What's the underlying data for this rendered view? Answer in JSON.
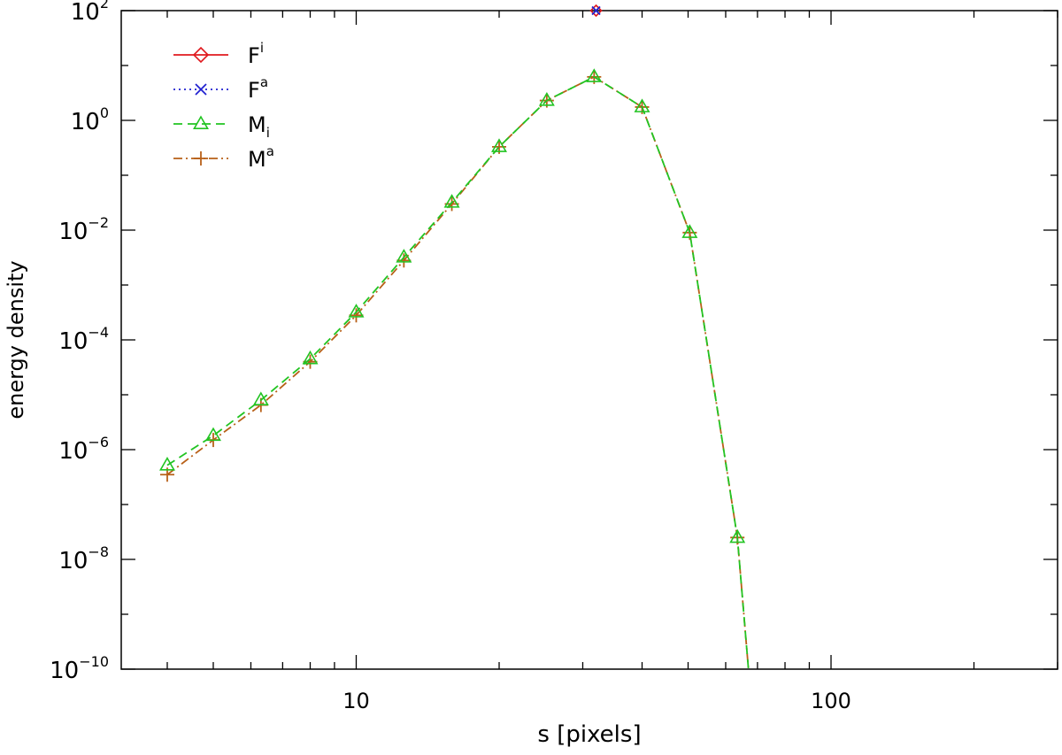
{
  "chart_data": {
    "type": "line",
    "xlabel": "s [pixels]",
    "ylabel": "energy density",
    "x_scale": "log",
    "y_scale": "log",
    "xlim": [
      3.2,
      300
    ],
    "ylim": [
      1e-10,
      100
    ],
    "x_ticks": [
      {
        "value": 10,
        "label": "10"
      },
      {
        "value": 100,
        "label": "100"
      }
    ],
    "y_ticks": [
      {
        "value": 1e-10,
        "base": "10",
        "exp": "−10"
      },
      {
        "value": 1e-08,
        "base": "10",
        "exp": "−8"
      },
      {
        "value": 1e-06,
        "base": "10",
        "exp": "−6"
      },
      {
        "value": 0.0001,
        "base": "10",
        "exp": "−4"
      },
      {
        "value": 0.01,
        "base": "10",
        "exp": "−2"
      },
      {
        "value": 1,
        "base": "10",
        "exp": "0"
      },
      {
        "value": 100,
        "base": "10",
        "exp": "2"
      }
    ],
    "grid": false,
    "legend_position": "top-left",
    "series": [
      {
        "base": "F",
        "sub": "",
        "sup": "i",
        "color": "#e0191e",
        "dash": "solid",
        "marker": "diamond",
        "points": [
          [
            32,
            100
          ]
        ]
      },
      {
        "base": "F",
        "sub": "",
        "sup": "a",
        "color": "#2020d0",
        "dash": "dotted",
        "marker": "x",
        "points": [
          [
            32,
            100
          ]
        ]
      },
      {
        "base": "M",
        "sub": "i",
        "sup": "",
        "color": "#22c422",
        "dash": "dashed",
        "marker": "triangle",
        "points": [
          [
            4,
            5.2e-07
          ],
          [
            5,
            1.8e-06
          ],
          [
            6.3,
            8e-06
          ],
          [
            8,
            4.5e-05
          ],
          [
            10,
            0.00032
          ],
          [
            12.6,
            0.0032
          ],
          [
            15.9,
            0.032
          ],
          [
            20,
            0.33
          ],
          [
            25.2,
            2.3
          ],
          [
            31.7,
            6.2
          ],
          [
            40,
            1.75
          ],
          [
            50.4,
            0.009
          ],
          [
            63.5,
            2.5e-08
          ],
          [
            67,
            1e-10
          ]
        ]
      },
      {
        "base": "M",
        "sub": "",
        "sup": "a",
        "color": "#b86018",
        "dash": "dashdot",
        "marker": "plus",
        "points": [
          [
            4,
            3.5e-07
          ],
          [
            5,
            1.5e-06
          ],
          [
            6.3,
            6.5e-06
          ],
          [
            8,
            4e-05
          ],
          [
            10,
            0.00028
          ],
          [
            12.6,
            0.0028
          ],
          [
            15.9,
            0.03
          ],
          [
            20,
            0.33
          ],
          [
            25.2,
            2.3
          ],
          [
            31.7,
            6.2
          ],
          [
            40,
            1.75
          ],
          [
            50.4,
            0.009
          ],
          [
            63.5,
            2.5e-08
          ],
          [
            67,
            1e-10
          ]
        ]
      }
    ]
  }
}
